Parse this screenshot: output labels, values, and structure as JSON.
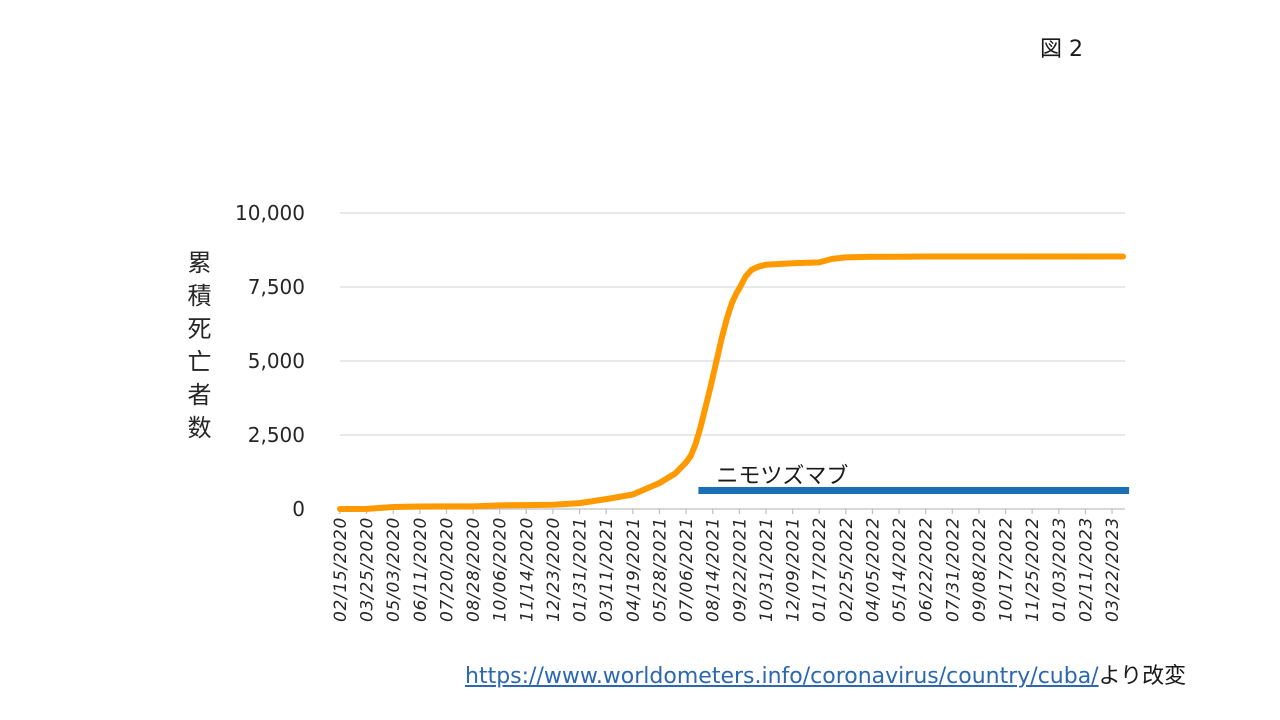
{
  "slide": {
    "figure_label": "図 2",
    "source": {
      "url": "https://www.worldometers.info/coronavirus/country/cuba/",
      "suffix": "より改変"
    }
  },
  "chart_data": {
    "type": "line",
    "ylabel": "累積死亡者数",
    "ylim": [
      0,
      10000
    ],
    "yticks": [
      0,
      2500,
      5000,
      7500,
      10000
    ],
    "ytick_labels": [
      "0",
      "2,500",
      "5,000",
      "7,500",
      "10,000"
    ],
    "xlim": [
      "02/15/2020",
      "04/10/2023"
    ],
    "xticks": [
      "02/15/2020",
      "03/25/2020",
      "05/03/2020",
      "06/11/2020",
      "07/20/2020",
      "08/28/2020",
      "10/06/2020",
      "11/14/2020",
      "12/23/2020",
      "01/31/2021",
      "03/11/2021",
      "04/19/2021",
      "05/28/2021",
      "07/06/2021",
      "08/14/2021",
      "09/22/2021",
      "10/31/2021",
      "12/09/2021",
      "01/17/2022",
      "02/25/2022",
      "04/05/2022",
      "05/14/2022",
      "06/22/2022",
      "07/31/2022",
      "09/08/2022",
      "10/17/2022",
      "11/25/2022",
      "01/03/2023",
      "02/11/2023",
      "03/22/2023"
    ],
    "grid": true,
    "x": [
      "02/15/2020",
      "03/10/2020",
      "03/25/2020",
      "04/15/2020",
      "05/03/2020",
      "06/11/2020",
      "07/20/2020",
      "08/28/2020",
      "10/06/2020",
      "11/14/2020",
      "12/23/2020",
      "01/31/2021",
      "03/11/2021",
      "04/19/2021",
      "05/28/2021",
      "06/20/2021",
      "07/06/2021",
      "07/13/2021",
      "07/20/2021",
      "07/27/2021",
      "08/03/2021",
      "08/10/2021",
      "08/14/2021",
      "08/21/2021",
      "08/28/2021",
      "09/04/2021",
      "09/11/2021",
      "09/18/2021",
      "09/22/2021",
      "10/01/2021",
      "10/10/2021",
      "10/20/2021",
      "10/31/2021",
      "12/09/2021",
      "01/17/2022",
      "02/05/2022",
      "02/25/2022",
      "04/05/2022",
      "05/14/2022",
      "06/22/2022",
      "07/31/2022",
      "09/08/2022",
      "10/17/2022",
      "11/25/2022",
      "01/03/2023",
      "02/11/2023",
      "03/22/2023",
      "04/07/2023"
    ],
    "series": [
      {
        "color": "#ff9900",
        "values": [
          0,
          0,
          2,
          36,
          69,
          85,
          87,
          88,
          122,
          131,
          142,
          200,
          335,
          489,
          880,
          1200,
          1579,
          1800,
          2200,
          2750,
          3400,
          4050,
          4450,
          5150,
          5850,
          6450,
          6950,
          7300,
          7450,
          7850,
          8080,
          8190,
          8250,
          8300,
          8330,
          8450,
          8500,
          8520,
          8525,
          8529,
          8529,
          8529,
          8530,
          8530,
          8530,
          8530,
          8530,
          8530
        ]
      }
    ],
    "annotations": [
      {
        "text": "ニモツズマブ",
        "start": "07/24/2021",
        "end": "04/16/2023",
        "color": "#1a6fb5"
      }
    ]
  }
}
